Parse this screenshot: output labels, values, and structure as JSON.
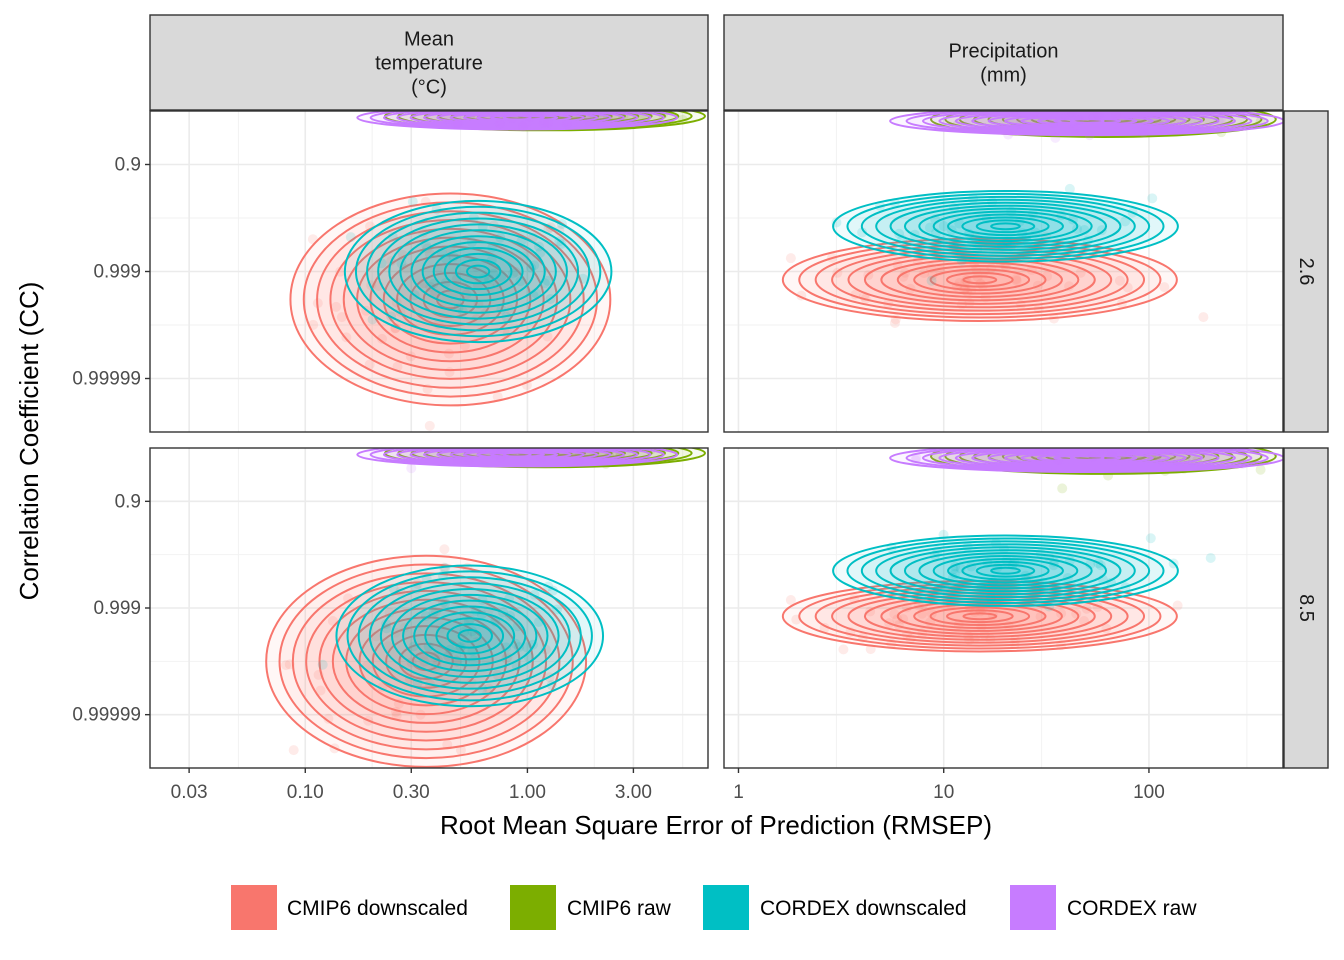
{
  "chart_data": {
    "type": "scatter",
    "overlay": "density contours",
    "facet_cols": [
      "Mean\ntemperature\n(°C)",
      "Precipitation\n(mm)"
    ],
    "facet_rows": [
      "2.6",
      "8.5"
    ],
    "xlabel": "Root Mean Square Error of Prediction (RMSEP)",
    "ylabel": "Correlation Coefficient (CC)",
    "x_scale": "log10",
    "y_scale": "-log10(1 - CC)",
    "x_ticks_col1": [
      "0.03",
      "0.10",
      "0.30",
      "1.00",
      "3.00"
    ],
    "x_ticks_col2": [
      "1",
      "10",
      "100"
    ],
    "y_ticks": [
      "0.9",
      "0.999",
      "0.99999"
    ],
    "xlim_col1": [
      0.02,
      6.5
    ],
    "xlim_col2": [
      0.85,
      450
    ],
    "ylim_1mcc": [
      1e-06,
      1.0
    ],
    "legend_position": "bottom",
    "series": [
      {
        "name": "CMIP6 downscaled",
        "color": "#F8766D",
        "groups": [
          {
            "col": 0,
            "row": 0,
            "x_center": 0.45,
            "x_log_sd": 0.3,
            "y_center": 0.9997,
            "y_log_sd": 0.9,
            "n": 60,
            "x_range": [
              0.025,
              2.0
            ],
            "y_range": [
              0.7,
              0.9999997
            ]
          },
          {
            "col": 1,
            "row": 0,
            "x_center": 15,
            "x_log_sd": 0.4,
            "y_center": 0.9993,
            "y_log_sd": 0.35,
            "n": 60,
            "x_range": [
              1.8,
              300
            ],
            "y_range": [
              0.95,
              0.99995
            ]
          },
          {
            "col": 0,
            "row": 1,
            "x_center": 0.35,
            "x_log_sd": 0.3,
            "y_center": 0.9999,
            "y_log_sd": 0.9,
            "n": 60,
            "x_range": [
              0.025,
              1.8
            ],
            "y_range": [
              0.8,
              0.9999999
            ]
          },
          {
            "col": 1,
            "row": 1,
            "x_center": 15,
            "x_log_sd": 0.4,
            "y_center": 0.9993,
            "y_log_sd": 0.3,
            "n": 60,
            "x_range": [
              1.8,
              300
            ],
            "y_range": [
              0.97,
              0.99995
            ]
          }
        ]
      },
      {
        "name": "CMIP6 raw",
        "color": "#7CAE00",
        "groups": [
          {
            "col": 0,
            "row": 0,
            "x_center": 1.2,
            "x_log_sd": 0.3,
            "y_center": 0.2,
            "y_log_sd": 0.12,
            "n": 25,
            "x_range": [
              0.3,
              5.0
            ],
            "y_range": [
              0.05,
              0.7
            ]
          },
          {
            "col": 1,
            "row": 0,
            "x_center": 60,
            "x_log_sd": 0.35,
            "y_center": 0.3,
            "y_log_sd": 0.15,
            "n": 25,
            "x_range": [
              5,
              350
            ],
            "y_range": [
              0.05,
              0.8
            ]
          },
          {
            "col": 0,
            "row": 1,
            "x_center": 1.2,
            "x_log_sd": 0.3,
            "y_center": 0.2,
            "y_log_sd": 0.12,
            "n": 25,
            "x_range": [
              0.3,
              5.0
            ],
            "y_range": [
              0.05,
              0.7
            ]
          },
          {
            "col": 1,
            "row": 1,
            "x_center": 60,
            "x_log_sd": 0.35,
            "y_center": 0.3,
            "y_log_sd": 0.15,
            "n": 25,
            "x_range": [
              5,
              350
            ],
            "y_range": [
              0.05,
              0.85
            ]
          }
        ]
      },
      {
        "name": "CORDEX downscaled",
        "color": "#00BFC4",
        "groups": [
          {
            "col": 0,
            "row": 0,
            "x_center": 0.6,
            "x_log_sd": 0.25,
            "y_center": 0.999,
            "y_log_sd": 0.6,
            "n": 45,
            "x_range": [
              0.15,
              2.0
            ],
            "y_range": [
              0.8,
              0.99999
            ]
          },
          {
            "col": 1,
            "row": 0,
            "x_center": 20,
            "x_log_sd": 0.35,
            "y_center": 0.993,
            "y_log_sd": 0.3,
            "n": 45,
            "x_range": [
              3,
              200
            ],
            "y_range": [
              0.8,
              0.9998
            ]
          },
          {
            "col": 0,
            "row": 1,
            "x_center": 0.55,
            "x_log_sd": 0.25,
            "y_center": 0.9997,
            "y_log_sd": 0.6,
            "n": 45,
            "x_range": [
              0.04,
              1.8
            ],
            "y_range": [
              0.85,
              0.99999
            ]
          },
          {
            "col": 1,
            "row": 1,
            "x_center": 20,
            "x_log_sd": 0.35,
            "y_center": 0.995,
            "y_log_sd": 0.3,
            "n": 45,
            "x_range": [
              3,
              200
            ],
            "y_range": [
              0.8,
              0.9998
            ]
          }
        ]
      },
      {
        "name": "CORDEX raw",
        "color": "#C77CFF",
        "groups": [
          {
            "col": 0,
            "row": 0,
            "x_center": 0.9,
            "x_log_sd": 0.3,
            "y_center": 0.25,
            "y_log_sd": 0.1,
            "n": 20,
            "x_range": [
              0.3,
              3.5
            ],
            "y_range": [
              0.05,
              0.75
            ]
          },
          {
            "col": 1,
            "row": 0,
            "x_center": 50,
            "x_log_sd": 0.4,
            "y_center": 0.35,
            "y_log_sd": 0.12,
            "n": 20,
            "x_range": [
              4,
              350
            ],
            "y_range": [
              0.05,
              0.8
            ]
          },
          {
            "col": 0,
            "row": 1,
            "x_center": 0.9,
            "x_log_sd": 0.3,
            "y_center": 0.25,
            "y_log_sd": 0.1,
            "n": 20,
            "x_range": [
              0.3,
              3.5
            ],
            "y_range": [
              0.05,
              0.75
            ]
          },
          {
            "col": 1,
            "row": 1,
            "x_center": 50,
            "x_log_sd": 0.4,
            "y_center": 0.35,
            "y_log_sd": 0.12,
            "n": 20,
            "x_range": [
              4,
              350
            ],
            "y_range": [
              0.05,
              0.8
            ]
          }
        ]
      }
    ]
  }
}
